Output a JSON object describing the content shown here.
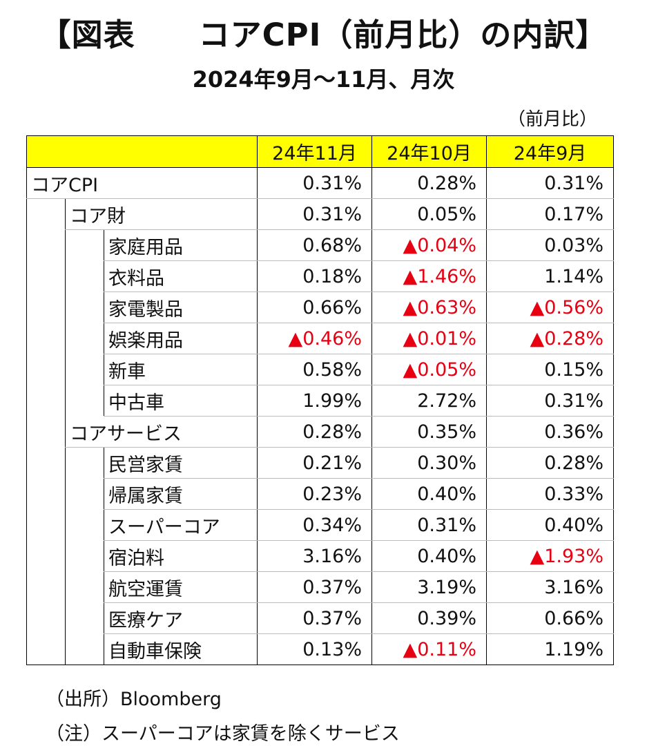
{
  "title": "【図表　　コアCPI（前月比）の内訳】",
  "subtitle": "2024年9月～11月、月次",
  "unit": "（前月比）",
  "columns": [
    "24年11月",
    "24年10月",
    "24年9月"
  ],
  "rows": [
    {
      "label": "コアCPI",
      "level": 0,
      "v": [
        "0.31%",
        "0.28%",
        "0.31%"
      ],
      "neg": [
        false,
        false,
        false
      ]
    },
    {
      "label": "コア財",
      "level": 1,
      "v": [
        "0.31%",
        "0.05%",
        "0.17%"
      ],
      "neg": [
        false,
        false,
        false
      ]
    },
    {
      "label": "家庭用品",
      "level": 2,
      "v": [
        "0.68%",
        "▲0.04%",
        "0.03%"
      ],
      "neg": [
        false,
        true,
        false
      ]
    },
    {
      "label": "衣料品",
      "level": 2,
      "v": [
        "0.18%",
        "▲1.46%",
        "1.14%"
      ],
      "neg": [
        false,
        true,
        false
      ]
    },
    {
      "label": "家電製品",
      "level": 2,
      "v": [
        "0.66%",
        "▲0.63%",
        "▲0.56%"
      ],
      "neg": [
        false,
        true,
        true
      ]
    },
    {
      "label": "娯楽用品",
      "level": 2,
      "v": [
        "▲0.46%",
        "▲0.01%",
        "▲0.28%"
      ],
      "neg": [
        true,
        true,
        true
      ]
    },
    {
      "label": "新車",
      "level": 2,
      "v": [
        "0.58%",
        "▲0.05%",
        "0.15%"
      ],
      "neg": [
        false,
        true,
        false
      ]
    },
    {
      "label": "中古車",
      "level": 2,
      "v": [
        "1.99%",
        "2.72%",
        "0.31%"
      ],
      "neg": [
        false,
        false,
        false
      ]
    },
    {
      "label": "コアサービス",
      "level": 1,
      "v": [
        "0.28%",
        "0.35%",
        "0.36%"
      ],
      "neg": [
        false,
        false,
        false
      ]
    },
    {
      "label": "民営家賃",
      "level": 2,
      "v": [
        "0.21%",
        "0.30%",
        "0.28%"
      ],
      "neg": [
        false,
        false,
        false
      ]
    },
    {
      "label": "帰属家賃",
      "level": 2,
      "v": [
        "0.23%",
        "0.40%",
        "0.33%"
      ],
      "neg": [
        false,
        false,
        false
      ]
    },
    {
      "label": "スーパーコア",
      "level": 2,
      "v": [
        "0.34%",
        "0.31%",
        "0.40%"
      ],
      "neg": [
        false,
        false,
        false
      ]
    },
    {
      "label": "宿泊料",
      "level": 2,
      "v": [
        "3.16%",
        "0.40%",
        "▲1.93%"
      ],
      "neg": [
        false,
        false,
        true
      ]
    },
    {
      "label": "航空運賃",
      "level": 2,
      "v": [
        "0.37%",
        "3.19%",
        "3.16%"
      ],
      "neg": [
        false,
        false,
        false
      ]
    },
    {
      "label": "医療ケア",
      "level": 2,
      "v": [
        "0.37%",
        "0.39%",
        "0.66%"
      ],
      "neg": [
        false,
        false,
        false
      ]
    },
    {
      "label": "自動車保険",
      "level": 2,
      "v": [
        "0.13%",
        "▲0.11%",
        "1.19%"
      ],
      "neg": [
        false,
        true,
        false
      ]
    }
  ],
  "notes": [
    "（出所）Bloomberg",
    "（注）スーパーコアは家賃を除くサービス"
  ],
  "colors": {
    "header_bg": "#ffff00",
    "negative": "#e60012"
  }
}
